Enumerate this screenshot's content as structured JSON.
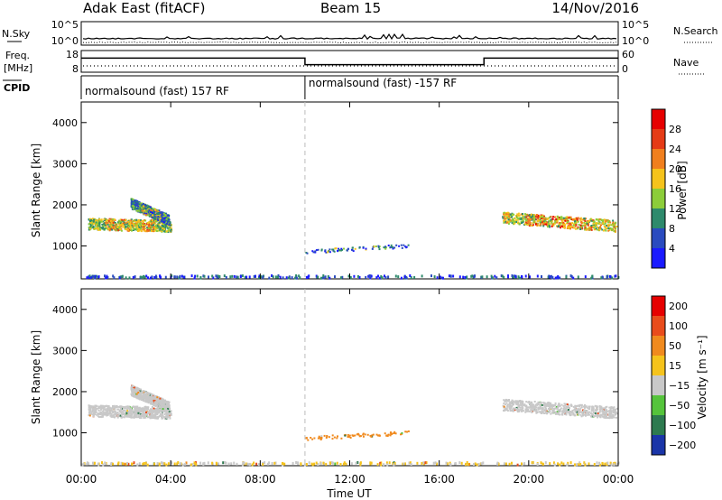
{
  "header": {
    "radar": "Adak East (fitACF)",
    "beam": "Beam 15",
    "date": "14/Nov/2016"
  },
  "sky_panel": {
    "left_label": "N.Sky",
    "right_label": "N.Search",
    "left_ticks": [
      "10^5",
      "10^0"
    ],
    "right_ticks": [
      "10^5",
      "10^0"
    ]
  },
  "freq_panel": {
    "left_label_1": "Freq.",
    "left_label_2": "[MHz]",
    "right_label": "Nave",
    "left_ticks": [
      "18",
      "8"
    ],
    "right_ticks": [
      "60",
      "0"
    ]
  },
  "cpid_panel": {
    "label": "CPID",
    "segments": [
      "normalsound (fast) 157 RF",
      "normalsound (fast) -157 RF"
    ]
  },
  "chart_data": [
    {
      "type": "heatmap",
      "panel": "power",
      "ylabel": "Slant Range [km]",
      "colorbar_label": "Power [dB]",
      "yticks": [
        "1000",
        "2000",
        "3000",
        "4000"
      ],
      "ylim": [
        200,
        4500
      ],
      "xlim": [
        0,
        24
      ],
      "colorbar_ticks": [
        "4",
        "8",
        "12",
        "16",
        "20",
        "24",
        "28"
      ],
      "colorbar_range": [
        0,
        32
      ],
      "colorbar_colors": [
        "#1a1aff",
        "#2a4bbf",
        "#2e8a6c",
        "#8ccd3a",
        "#f5c31c",
        "#f07f1e",
        "#e53b16",
        "#e60000"
      ],
      "scatter_regions": [
        {
          "name": "evening",
          "x0": 0.3,
          "x1": 4.0,
          "y_start": 1550,
          "y_end": 1500,
          "spread": 280,
          "value": 14
        },
        {
          "name": "evening-upper",
          "x0": 2.2,
          "x1": 3.9,
          "y_start": 2050,
          "y_end": 1650,
          "spread": 250,
          "value": 8
        },
        {
          "name": "midday",
          "x0": 10.0,
          "x1": 14.7,
          "y_start": 880,
          "y_end": 1020,
          "spread": 90,
          "value": 6
        },
        {
          "name": "morning",
          "x0": 18.8,
          "x1": 23.9,
          "y_start": 1700,
          "y_end": 1500,
          "spread": 280,
          "value": 16
        },
        {
          "name": "ground",
          "x0": 0.0,
          "x1": 24.0,
          "y_start": 280,
          "y_end": 280,
          "spread": 60,
          "value": 6
        }
      ]
    },
    {
      "type": "heatmap",
      "panel": "velocity",
      "ylabel": "Slant Range [km]",
      "colorbar_label": "Velocity [m s⁻¹]",
      "yticks": [
        "1000",
        "2000",
        "3000",
        "4000"
      ],
      "ylim": [
        200,
        4500
      ],
      "xlim": [
        0,
        24
      ],
      "colorbar_ticks": [
        "200",
        "100",
        "50",
        "15",
        "−15",
        "−50",
        "−100",
        "−200"
      ],
      "colorbar_colors": [
        "#1a35a8",
        "#2d7a4f",
        "#55c43b",
        "#c8c8c8",
        "#f5c31c",
        "#f08a1e",
        "#e94c1c",
        "#e60000"
      ],
      "scatter_regions": [
        {
          "name": "evening",
          "x0": 0.3,
          "x1": 4.0,
          "y_start": 1550,
          "y_end": 1500,
          "spread": 280,
          "value": 0
        },
        {
          "name": "evening-upper",
          "x0": 2.2,
          "x1": 3.9,
          "y_start": 2050,
          "y_end": 1650,
          "spread": 250,
          "value": 0
        },
        {
          "name": "midday",
          "x0": 10.0,
          "x1": 14.7,
          "y_start": 880,
          "y_end": 1020,
          "spread": 90,
          "value": -50
        },
        {
          "name": "morning",
          "x0": 18.8,
          "x1": 23.9,
          "y_start": 1700,
          "y_end": 1500,
          "spread": 280,
          "value": 0
        },
        {
          "name": "ground",
          "x0": 0.0,
          "x1": 24.0,
          "y_start": 280,
          "y_end": 280,
          "spread": 60,
          "value": -15
        }
      ]
    }
  ],
  "x_axis": {
    "label": "Time UT",
    "ticks": [
      "00:00",
      "04:00",
      "08:00",
      "12:00",
      "16:00",
      "20:00",
      "00:00"
    ],
    "tick_hours": [
      0,
      4,
      8,
      12,
      16,
      20,
      24
    ],
    "divider_hour": 10.0
  },
  "freq_trace": {
    "hours": [
      0,
      10,
      10,
      18,
      18,
      24
    ],
    "values": [
      14.5,
      14.5,
      11.5,
      11.5,
      14.5,
      14.5
    ]
  }
}
